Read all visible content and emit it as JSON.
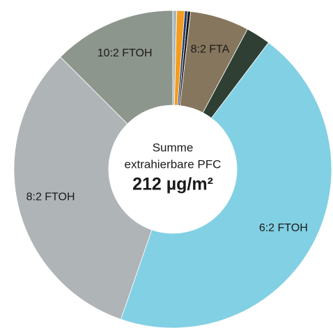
{
  "chart_data": {
    "type": "donut",
    "categories": [
      null,
      null,
      null,
      null,
      "8:2 FTA",
      null,
      "6:2 FTOH",
      "8:2 FTOH",
      "10:2 FTOH"
    ],
    "values": [
      0.4,
      0.8,
      0.3,
      0.3,
      6.0,
      2.5,
      45.0,
      32.2,
      12.5
    ],
    "colors": [
      "#a9b8bc",
      "#f39c1f",
      "#1f3c6e",
      "#1a1a1a",
      "#85765d",
      "#2f3f33",
      "#82d0e4",
      "#afb4b7",
      "#8d968d"
    ],
    "center_label": [
      "Summe",
      "extrahierbare PFC"
    ],
    "center_value": "212 µg/m²"
  }
}
